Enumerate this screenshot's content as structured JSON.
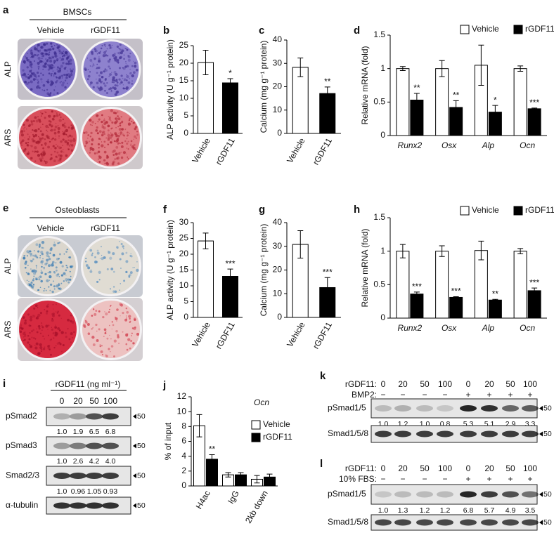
{
  "chart_data": [
    {
      "type": "bar",
      "panel": "b",
      "ylabel": "ALP activity (U g⁻¹ protein)",
      "categories": [
        "Vehicle",
        "rGDF11"
      ],
      "values": [
        20.2,
        14.4
      ],
      "errors": [
        3.5,
        1.2
      ],
      "colors": [
        "#ffffff",
        "#000000"
      ],
      "annotations": [
        null,
        "*"
      ],
      "ylim": [
        0,
        25
      ],
      "yticks": [
        0,
        5,
        10,
        15,
        20,
        25
      ]
    },
    {
      "type": "bar",
      "panel": "c",
      "ylabel": "Calcium (mg g⁻¹ protein)",
      "categories": [
        "Vehicle",
        "rGDF11"
      ],
      "values": [
        28.3,
        17.1
      ],
      "errors": [
        4,
        2.8
      ],
      "colors": [
        "#ffffff",
        "#000000"
      ],
      "annotations": [
        null,
        "**"
      ],
      "ylim": [
        0,
        40
      ],
      "yticks": [
        0,
        10,
        20,
        30,
        40
      ]
    },
    {
      "type": "bar",
      "panel": "d",
      "ylabel": "Relative mRNA (fold)",
      "categories": [
        "Runx2",
        "Osx",
        "Alp",
        "Ocn"
      ],
      "series": [
        {
          "name": "Vehicle",
          "color": "#ffffff",
          "values": [
            1,
            1,
            1.05,
            1
          ],
          "errors": [
            0.03,
            0.12,
            0.3,
            0.04
          ]
        },
        {
          "name": "rGDF11",
          "color": "#000000",
          "values": [
            0.53,
            0.42,
            0.35,
            0.4
          ],
          "errors": [
            0.1,
            0.1,
            0.1,
            0.01
          ],
          "annotations": [
            "**",
            "**",
            "*",
            "***"
          ]
        }
      ],
      "ylim": [
        0,
        1.5
      ],
      "yticks": [
        0,
        0.5,
        1,
        1.5
      ]
    },
    {
      "type": "bar",
      "panel": "f",
      "ylabel": "ALP activity (U g⁻¹ protein)",
      "categories": [
        "Vehicle",
        "rGDF11"
      ],
      "values": [
        24.2,
        13
      ],
      "errors": [
        2.5,
        2.3
      ],
      "colors": [
        "#ffffff",
        "#000000"
      ],
      "annotations": [
        null,
        "***"
      ],
      "ylim": [
        0,
        30
      ],
      "yticks": [
        0,
        5,
        10,
        15,
        20,
        25,
        30
      ]
    },
    {
      "type": "bar",
      "panel": "g",
      "ylabel": "Calcium (mg g⁻¹ protein)",
      "categories": [
        "Vehicle",
        "rGDF11"
      ],
      "values": [
        30.8,
        12.6
      ],
      "errors": [
        5.8,
        4.2
      ],
      "colors": [
        "#ffffff",
        "#000000"
      ],
      "annotations": [
        null,
        "***"
      ],
      "ylim": [
        0,
        40
      ],
      "yticks": [
        0,
        10,
        20,
        30,
        40
      ]
    },
    {
      "type": "bar",
      "panel": "h",
      "ylabel": "Relative mRNA (fold)",
      "categories": [
        "Runx2",
        "Osx",
        "Alp",
        "Ocn"
      ],
      "series": [
        {
          "name": "Vehicle",
          "color": "#ffffff",
          "values": [
            1,
            1,
            1.01,
            1
          ],
          "errors": [
            0.1,
            0.08,
            0.14,
            0.04
          ]
        },
        {
          "name": "rGDF11",
          "color": "#000000",
          "values": [
            0.36,
            0.31,
            0.27,
            0.41
          ],
          "errors": [
            0.03,
            0.01,
            0.01,
            0.04
          ],
          "annotations": [
            "***",
            "***",
            "**",
            "***"
          ]
        }
      ],
      "ylim": [
        0,
        1.5
      ],
      "yticks": [
        0,
        0.5,
        1,
        1.5
      ]
    },
    {
      "type": "bar",
      "panel": "j",
      "title": "Ocn",
      "ylabel": "% of input",
      "categories": [
        "H4ac",
        "IgG",
        "2kb down"
      ],
      "series": [
        {
          "name": "Vehicle",
          "color": "#ffffff",
          "values": [
            8.1,
            1.5,
            0.9
          ],
          "errors": [
            1.5,
            0.3,
            0.5
          ]
        },
        {
          "name": "rGDF11",
          "color": "#000000",
          "values": [
            3.6,
            1.5,
            1.2
          ],
          "errors": [
            0.6,
            0.3,
            0.4
          ],
          "annotations": [
            "**",
            null,
            null
          ]
        }
      ],
      "ylim": [
        0,
        12
      ],
      "yticks": [
        0,
        2,
        4,
        6,
        8,
        10,
        12
      ]
    }
  ],
  "panel_a": {
    "letter": "a",
    "title": "BMSCs",
    "columns": [
      "Vehicle",
      "rGDF11"
    ],
    "rows": [
      "ALP",
      "ARS"
    ]
  },
  "panel_e": {
    "letter": "e",
    "title": "Osteoblasts",
    "columns": [
      "Vehicle",
      "rGDF11"
    ],
    "rows": [
      "ALP",
      "ARS"
    ]
  },
  "panel_i": {
    "letter": "i",
    "conditions": [
      {
        "label": "rGDF11 (ng ml⁻¹)",
        "values": [
          "0",
          "20",
          "50",
          "100"
        ]
      }
    ],
    "blots": [
      {
        "label": "pSmad2",
        "quant": [
          "1.0",
          "1.9",
          "6.5",
          "6.8"
        ],
        "marker": "50"
      },
      {
        "label": "pSmad3",
        "quant": [
          "1.0",
          "2.6",
          "4.2",
          "4.0"
        ],
        "marker": "50"
      },
      {
        "label": "Smad2/3",
        "quant": [
          "1.0",
          "0.96",
          "1.05",
          "0.93"
        ],
        "marker": "50"
      },
      {
        "label": "α-tubulin",
        "marker": "50"
      }
    ]
  },
  "panel_k": {
    "letter": "k",
    "conditions": [
      {
        "label": "rGDF11:",
        "values": [
          "0",
          "20",
          "50",
          "100",
          "0",
          "20",
          "50",
          "100"
        ]
      },
      {
        "label": "BMP2:",
        "values": [
          "−",
          "−",
          "−",
          "−",
          "+",
          "+",
          "+",
          "+"
        ]
      }
    ],
    "blots": [
      {
        "label": "pSmad1/5",
        "quant": [
          "1.0",
          "1.2",
          "1.0",
          "0.8",
          "5.3",
          "5.1",
          "2.9",
          "3.3"
        ],
        "marker": "50"
      },
      {
        "label": "Smad1/5/8",
        "marker": "50"
      }
    ]
  },
  "panel_l": {
    "letter": "l",
    "conditions": [
      {
        "label": "rGDF11:",
        "values": [
          "0",
          "20",
          "50",
          "100",
          "0",
          "20",
          "50",
          "100"
        ]
      },
      {
        "label": "10% FBS:",
        "values": [
          "−",
          "−",
          "−",
          "−",
          "+",
          "+",
          "+",
          "+"
        ]
      }
    ],
    "blots": [
      {
        "label": "pSmad1/5",
        "quant": [
          "1.0",
          "1.3",
          "1.2",
          "1.2",
          "6.8",
          "5.7",
          "4.9",
          "3.5"
        ],
        "marker": "50"
      },
      {
        "label": "Smad1/5/8",
        "marker": "50"
      }
    ]
  }
}
